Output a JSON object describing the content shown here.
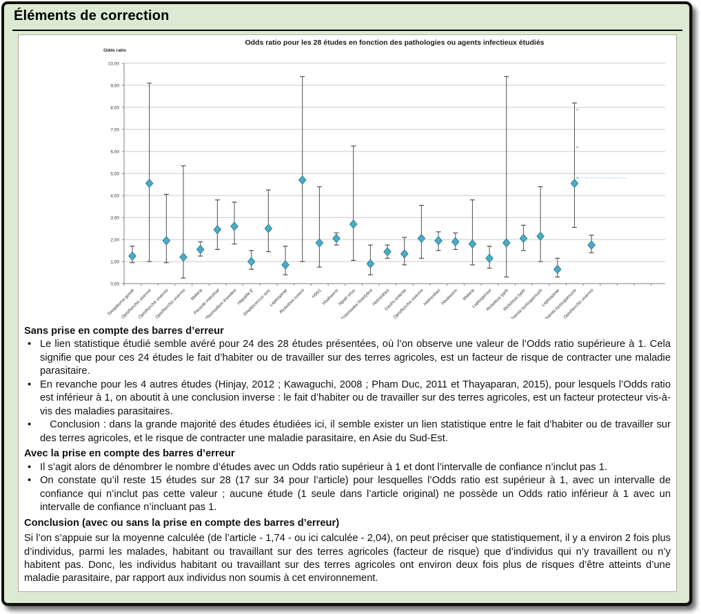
{
  "page": {
    "title": "Éléments de correction"
  },
  "chart_data": {
    "type": "scatter",
    "title": "Odds ratio pour les 28 études en fonction des pathologies ou agents infectieux étudiés",
    "ylabel": "Odds ratio",
    "xlabel": "",
    "ylim": [
      0,
      10
    ],
    "ytick_labels": [
      "0,00",
      "1,00",
      "2,00",
      "3,00",
      "4,00",
      "5,00",
      "6,00",
      "7,00",
      "8,00",
      "9,00",
      "10,00"
    ],
    "grid": true,
    "legend": "none",
    "marker": "diamond",
    "colors": {
      "marker_fill": "#4bacc6",
      "marker_edge": "#2e7f96",
      "error_bar": "#4d4d4d",
      "gridline": "#c9c9c9",
      "axis": "#7f7f7f",
      "annotation": "#9dc3e6"
    },
    "categories": [
      "Toxoplasma gondii",
      "Opisthorchis viverrini",
      "Opisthorchis viverrini",
      "Opisthorchis viverrini",
      "Malaria",
      "Parasite intestinal",
      "Plasmodium knowlesi",
      "Hépatite E",
      "Streptococcus suis",
      "Leptospirae",
      "Rickettsia conorii",
      "H5N1",
      "Hookworm",
      "Nipah virus",
      "Entamoeba histolytica",
      "Helminthes",
      "Gastro enterite",
      "Opisthorchis viverrini",
      "Helminthes",
      "Hookworm",
      "Malaria",
      "Leptospirose",
      "Rickettsia typhi",
      "Rickettsia typhi",
      "Orienta tsutsugamushi",
      "Leptospirae",
      "Orienta tsutsugamushi",
      "Opisthorchis viverrini"
    ],
    "series": [
      {
        "name": "Odds ratio",
        "values": [
          1.25,
          4.55,
          1.95,
          1.2,
          1.55,
          2.45,
          2.6,
          1.0,
          2.5,
          0.85,
          4.7,
          1.85,
          2.05,
          2.7,
          0.9,
          1.45,
          1.35,
          2.05,
          1.95,
          1.9,
          1.8,
          1.15,
          1.85,
          2.05,
          2.15,
          0.65,
          4.55,
          1.75
        ],
        "ci_low": [
          0.95,
          1.0,
          0.95,
          0.25,
          1.25,
          1.55,
          1.8,
          0.65,
          1.45,
          0.4,
          1.0,
          0.75,
          1.75,
          1.05,
          0.4,
          1.15,
          0.85,
          1.15,
          1.5,
          1.55,
          0.85,
          0.7,
          0.3,
          1.5,
          1.0,
          0.3,
          2.55,
          1.4
        ],
        "ci_high": [
          1.7,
          9.1,
          4.05,
          5.35,
          1.9,
          3.8,
          3.7,
          1.5,
          4.25,
          1.7,
          9.4,
          4.4,
          2.3,
          6.25,
          1.75,
          1.75,
          2.1,
          3.55,
          2.35,
          2.3,
          3.8,
          1.7,
          9.4,
          2.65,
          4.4,
          1.15,
          8.2,
          2.2
        ]
      }
    ],
    "annotation_marks": [
      {
        "category_index": 26,
        "value": 7.9,
        "dotted": false
      },
      {
        "category_index": 26,
        "value": 6.2,
        "dotted": false
      },
      {
        "category_index": 26,
        "value": 4.8,
        "dotted": true
      }
    ]
  },
  "body": {
    "sections": [
      {
        "heading": "Sans prise en compte des barres d’erreur",
        "bullets": [
          "Le lien statistique étudié semble avéré pour 24 des 28 études présentées, où l’on observe une valeur de l’Odds ratio supérieure à 1. Cela signifie que pour ces 24 études le fait d’habiter ou de travailler sur des terres agricoles, est un facteur de risque de contracter une maladie parasitaire.",
          "En revanche pour les 4 autres études (Hinjay, 2012 ; Kawaguchi, 2008 ; Pham Duc, 2011 et Thayaparan, 2015), pour lesquels l’Odds ratio est inférieur à 1, on aboutit à une conclusion inverse : le fait d’habiter ou de travailler sur des terres agricoles, est un facteur protecteur vis-à-vis des maladies parasitaires.",
          "   Conclusion : dans la grande majorité des études étudiées ici, il semble exister un lien statistique entre le fait d’habiter ou de travailler sur des terres agricoles, et le risque de contracter une maladie parasitaire, en Asie du Sud-Est."
        ]
      },
      {
        "heading": "Avec la prise en compte des barres d’erreur",
        "bullets": [
          "Il s’agit alors de dénombrer le nombre d’études avec un Odds ratio supérieur à 1 et dont l’intervalle de confiance n’inclut pas 1.",
          "On constate qu’il reste 15 études sur 28 (17 sur 34 pour l’article) pour lesquelles l’Odds ratio est supérieur à 1, avec un intervalle de confiance qui n’inclut pas cette valeur ; aucune étude (1 seule dans l’article original) ne possède un Odds ratio inférieur à 1 avec un intervalle de confiance n’incluant pas 1."
        ]
      },
      {
        "heading": "Conclusion (avec ou sans la prise en compte des barres d’erreur)",
        "paragraph": "Si l’on s’appuie sur la moyenne calculée (de l’article - 1,74 - ou ici calculée - 2,04), on peut préciser que statistiquement, il y a environ 2 fois plus d’individus, parmi les malades, habitant ou travaillant sur des terres agricoles (facteur de risque) que d’individus qui n’y travaillent ou n’y habitent pas. Donc, les individus habitant ou travaillant sur des terres agricoles ont environ deux fois plus de risques d’être atteints d’une maladie parasitaire, par rapport aux individus non soumis à cet environnement."
      }
    ]
  }
}
